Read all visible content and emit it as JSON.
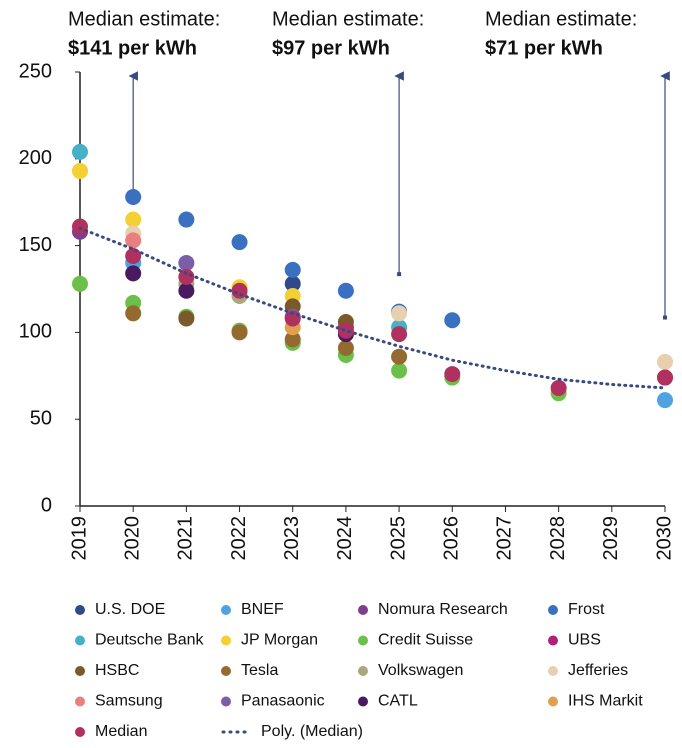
{
  "chart_data": {
    "type": "scatter",
    "xlim": [
      2019,
      2030
    ],
    "xticks": [
      2019,
      2020,
      2021,
      2022,
      2023,
      2024,
      2025,
      2026,
      2027,
      2028,
      2029,
      2030
    ],
    "ylim": [
      0,
      250
    ],
    "yticks": [
      0,
      50,
      100,
      150,
      200,
      250
    ],
    "annotations": [
      {
        "lines": [
          "Median estimate:",
          "$141 per kWh"
        ],
        "x": 2020
      },
      {
        "lines": [
          "Median estimate:",
          "$97 per kWh"
        ],
        "x": 2025
      },
      {
        "lines": [
          "Median estimate:",
          "$71 per kWh"
        ],
        "x": 2030
      }
    ],
    "series": [
      {
        "name": "U.S. DOE",
        "color": "#2e4a8a",
        "x": [
          2023
        ],
        "values": [
          128
        ]
      },
      {
        "name": "BNEF",
        "color": "#4fa3e0",
        "x": [
          2020,
          2030
        ],
        "values": [
          140,
          61
        ]
      },
      {
        "name": "Nomura Research",
        "color": "#7b3f8c",
        "x": [
          2019
        ],
        "values": [
          158
        ]
      },
      {
        "name": "Frost",
        "color": "#3a70c0",
        "x": [
          2020,
          2021,
          2022,
          2023,
          2024,
          2025,
          2026
        ],
        "values": [
          178,
          165,
          152,
          136,
          124,
          112,
          107
        ]
      },
      {
        "name": "Deutsche Bank",
        "color": "#45b0c8",
        "x": [
          2019,
          2025
        ],
        "values": [
          204,
          103
        ]
      },
      {
        "name": "JP Morgan",
        "color": "#f5d033",
        "x": [
          2019,
          2020,
          2022,
          2023
        ],
        "values": [
          193,
          165,
          126,
          121
        ]
      },
      {
        "name": "Credit Suisse",
        "color": "#6cc04a",
        "x": [
          2019,
          2020,
          2021,
          2022,
          2023,
          2024,
          2025,
          2026,
          2028
        ],
        "values": [
          128,
          117,
          109,
          101,
          94,
          87,
          78,
          74,
          65
        ]
      },
      {
        "name": "UBS",
        "color": "#b0207a",
        "x": [
          2024
        ],
        "values": [
          103
        ]
      },
      {
        "name": "HSBC",
        "color": "#7a5a2a",
        "x": [
          2021,
          2023,
          2024,
          2030
        ],
        "values": [
          108,
          115,
          106,
          74
        ]
      },
      {
        "name": "Tesla",
        "color": "#946a30",
        "x": [
          2020,
          2022,
          2023,
          2024,
          2025
        ],
        "values": [
          111,
          100,
          96,
          91,
          86
        ]
      },
      {
        "name": "Volkswagen",
        "color": "#a8a880",
        "x": [
          2021,
          2022
        ],
        "values": [
          128,
          121
        ]
      },
      {
        "name": "Jefferies",
        "color": "#e8cfb0",
        "x": [
          2020,
          2025,
          2030
        ],
        "values": [
          157,
          111,
          83
        ]
      },
      {
        "name": "Samsung",
        "color": "#e88080",
        "x": [
          2020
        ],
        "values": [
          153
        ]
      },
      {
        "name": "Panasaonic",
        "color": "#7a5ea8",
        "x": [
          2021,
          2023
        ],
        "values": [
          140,
          109
        ]
      },
      {
        "name": "CATL",
        "color": "#4a1a60",
        "x": [
          2020,
          2021,
          2024
        ],
        "values": [
          134,
          124,
          99
        ]
      },
      {
        "name": "IHS Markit",
        "color": "#e0a050",
        "x": [
          2023
        ],
        "values": [
          103
        ]
      },
      {
        "name": "Median",
        "color": "#b03060",
        "x": [
          2019,
          2020,
          2021,
          2022,
          2023,
          2024,
          2025,
          2026,
          2028,
          2030
        ],
        "values": [
          161,
          144,
          132,
          124,
          108,
          101,
          99,
          76,
          68,
          74
        ]
      },
      {
        "name": "Poly. (Median)",
        "color": "#3a4a80",
        "line": "dotted",
        "x": [
          2019,
          2020,
          2021,
          2022,
          2023,
          2024,
          2025,
          2026,
          2027,
          2028,
          2029,
          2030
        ],
        "values": [
          160,
          148,
          134,
          122,
          111,
          101,
          92,
          84,
          78,
          73,
          70,
          68
        ]
      }
    ]
  }
}
